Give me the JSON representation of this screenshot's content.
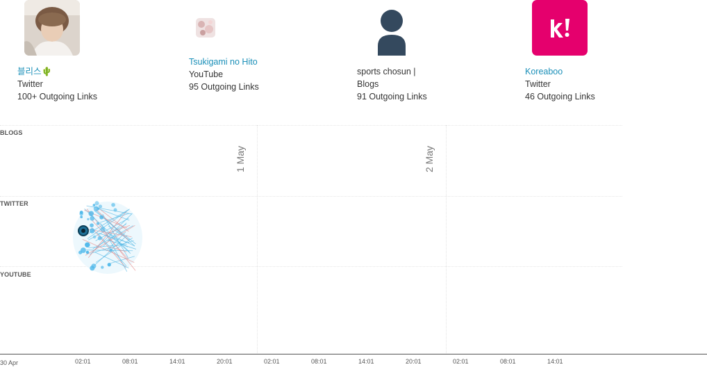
{
  "sources": [
    {
      "name": "블리스🌵",
      "platform": "Twitter",
      "links": "100+ Outgoing Links",
      "avatar": "user-photo"
    },
    {
      "name": "Tsukigami no Hito",
      "platform": "YouTube",
      "links": "95 Outgoing Links",
      "avatar": "channel-thumbnail"
    },
    {
      "name": "sports chosun |",
      "platform": "Blogs",
      "links": "91 Outgoing Links",
      "avatar": "person-silhouette-icon"
    },
    {
      "name": "Koreaboo",
      "platform": "Twitter",
      "links": "46 Outgoing Links",
      "avatar": "koreaboo-logo"
    }
  ],
  "lanes": [
    "BLOGS",
    "TWITTER",
    "YOUTUBE"
  ],
  "days": [
    "1 May",
    "2 May"
  ],
  "axis": {
    "start_date": "30 Apr",
    "ticks": [
      "02:01",
      "08:01",
      "14:01",
      "20:01",
      "02:01",
      "08:01",
      "14:01",
      "20:01",
      "02:01",
      "08:01",
      "14:01"
    ]
  },
  "colors": {
    "link": "#1a8fb8",
    "node": "#4fb8ea",
    "edge_blue": "#5bbbe6",
    "edge_red": "#e58c8c",
    "highlight": "#1d6f96",
    "koreaboo": "#e5006d"
  }
}
